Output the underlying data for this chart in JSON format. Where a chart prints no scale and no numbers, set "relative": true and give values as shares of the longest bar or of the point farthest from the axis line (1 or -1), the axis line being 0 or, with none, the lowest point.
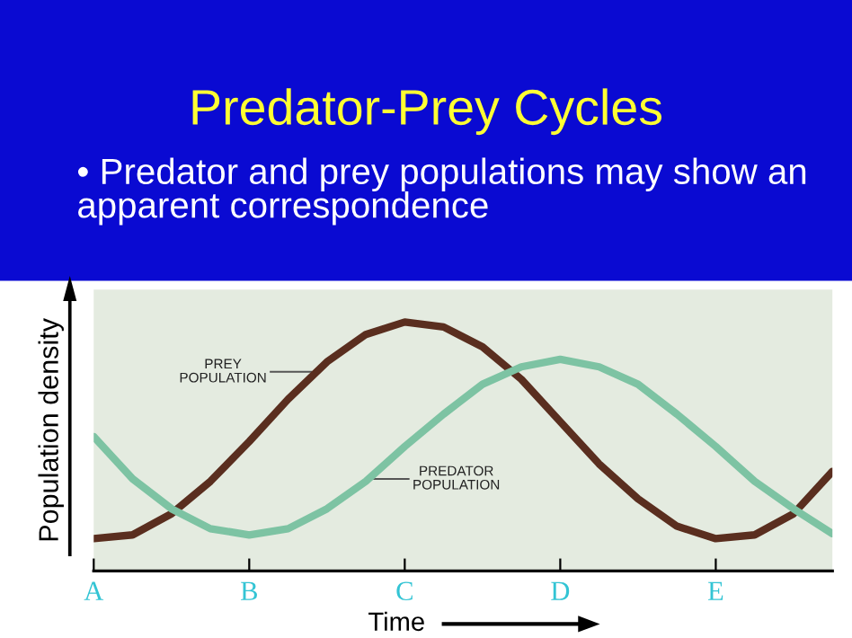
{
  "chart_data": {
    "type": "line",
    "title": "Predator-Prey Cycles",
    "subtitle": "• Predator and prey populations may show an apparent correspondence",
    "xlabel": "Time",
    "ylabel": "Population density",
    "relative": true,
    "categories": [
      "A",
      null,
      null,
      null,
      "B",
      null,
      null,
      null,
      "C",
      null,
      null,
      null,
      "D",
      null,
      null,
      null,
      "E",
      null,
      null,
      null
    ],
    "series": [
      {
        "name": "PREY POPULATION",
        "color": "#5a2e1f",
        "values": [
          0.13,
          0.145,
          0.23,
          0.36,
          0.52,
          0.69,
          0.84,
          0.95,
          1.0,
          0.98,
          0.9,
          0.77,
          0.6,
          0.43,
          0.29,
          0.18,
          0.13,
          0.145,
          0.23,
          0.4
        ]
      },
      {
        "name": "PREDATOR POPULATION",
        "color": "#7dc3a3",
        "values": [
          0.54,
          0.37,
          0.25,
          0.17,
          0.145,
          0.17,
          0.25,
          0.36,
          0.5,
          0.63,
          0.75,
          0.82,
          0.85,
          0.82,
          0.75,
          0.63,
          0.5,
          0.36,
          0.25,
          0.15
        ]
      }
    ],
    "grid": false,
    "legend": false,
    "marker": "none",
    "line_style": "solid"
  }
}
